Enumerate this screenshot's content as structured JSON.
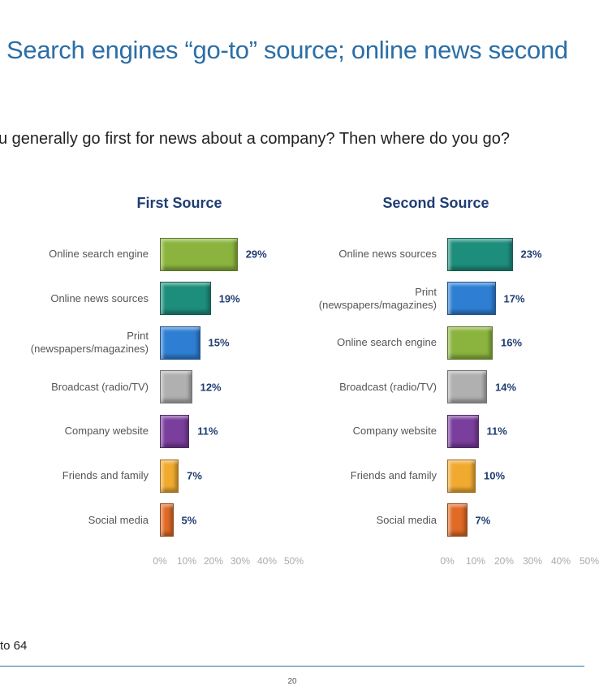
{
  "header": {
    "title": "Search engines “go-to” source; online news second",
    "question": "u generally go first for news about a company? Then where do you go?"
  },
  "chart_data": [
    {
      "type": "bar",
      "title": "First Source",
      "categories": [
        "Online search engine",
        "Online news sources",
        "Print\n(newspapers/magazines)",
        "Broadcast (radio/TV)",
        "Company website",
        "Friends and family",
        "Social media"
      ],
      "values": [
        29,
        19,
        15,
        12,
        11,
        7,
        5
      ],
      "value_labels": [
        "29%",
        "19%",
        "15%",
        "12%",
        "11%",
        "7%",
        "5%"
      ],
      "colors": [
        "#8ab43e",
        "#1e8e7c",
        "#2e7fd4",
        "#b0b0b0",
        "#7a3e9c",
        "#f0aa30",
        "#e06a26"
      ],
      "xlim": [
        0,
        50
      ],
      "xticks": [
        {
          "value": 0,
          "label": "0%"
        },
        {
          "value": 10,
          "label": "10%"
        },
        {
          "value": 20,
          "label": "20%"
        },
        {
          "value": 30,
          "label": "30%"
        },
        {
          "value": 40,
          "label": "40%"
        },
        {
          "value": 50,
          "label": "50%"
        }
      ]
    },
    {
      "type": "bar",
      "title": "Second Source",
      "categories": [
        "Online news sources",
        "Print\n(newspapers/magazines)",
        "Online search engine",
        "Broadcast (radio/TV)",
        "Company website",
        "Friends and family",
        "Social media"
      ],
      "values": [
        23,
        17,
        16,
        14,
        11,
        10,
        7
      ],
      "value_labels": [
        "23%",
        "17%",
        "16%",
        "14%",
        "11%",
        "10%",
        "7%"
      ],
      "colors": [
        "#1e8e7c",
        "#2e7fd4",
        "#8ab43e",
        "#b0b0b0",
        "#7a3e9c",
        "#f0aa30",
        "#e06a26"
      ],
      "xlim": [
        0,
        50
      ],
      "xticks": [
        {
          "value": 0,
          "label": "0%"
        },
        {
          "value": 10,
          "label": "10%"
        },
        {
          "value": 20,
          "label": "20%"
        },
        {
          "value": 30,
          "label": "30%"
        },
        {
          "value": 40,
          "label": "40%"
        },
        {
          "value": 50,
          "label": "50%"
        }
      ]
    }
  ],
  "footer": {
    "note": "to 64",
    "page": "20"
  }
}
